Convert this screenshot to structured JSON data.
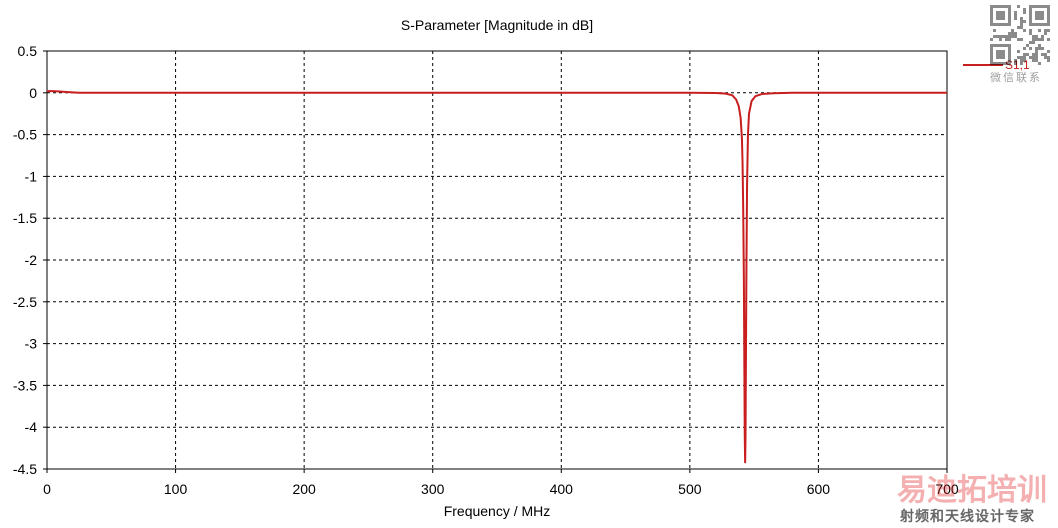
{
  "chart_data": {
    "type": "line",
    "title": "S-Parameter [Magnitude in dB]",
    "xlabel": "Frequency / MHz",
    "ylabel": "",
    "xlim": [
      0,
      700
    ],
    "ylim": [
      -4.5,
      0.5
    ],
    "xticks": [
      0,
      100,
      200,
      300,
      400,
      500,
      600,
      700
    ],
    "yticks": [
      0.5,
      0,
      -0.5,
      -1,
      -1.5,
      -2,
      -2.5,
      -3,
      -3.5,
      -4,
      -4.5
    ],
    "xtick_labels": [
      "0",
      "100",
      "200",
      "300",
      "400",
      "500",
      "600",
      "700"
    ],
    "ytick_labels": [
      "0.5",
      "0",
      "-0.5",
      "-1",
      "-1.5",
      "-2",
      "-2.5",
      "-3",
      "-3.5",
      "-4",
      "-4.5"
    ],
    "grid": true,
    "grid_style": "dashed",
    "legend_position": "right",
    "series": [
      {
        "name": "S1,1",
        "color": "#c81e1e",
        "x": [
          0,
          5,
          10,
          15,
          20,
          25,
          100,
          200,
          300,
          400,
          500,
          520,
          528,
          533,
          536,
          538,
          539.5,
          540.5,
          541,
          541.5,
          542,
          542.4,
          542.7,
          543,
          543.3,
          543.6,
          544,
          544.5,
          545.2,
          546,
          548,
          551,
          556,
          565,
          580,
          700
        ],
        "y": [
          0.02,
          0.02,
          0.015,
          0.01,
          0.005,
          0,
          0,
          0,
          0,
          0,
          0,
          -0.002,
          -0.01,
          -0.03,
          -0.08,
          -0.16,
          -0.3,
          -0.55,
          -0.85,
          -1.4,
          -2.2,
          -3.3,
          -4.1,
          -4.42,
          -4.1,
          -3.2,
          -2.1,
          -1.1,
          -0.5,
          -0.25,
          -0.1,
          -0.04,
          -0.015,
          -0.005,
          0,
          0
        ]
      }
    ]
  },
  "legend": {
    "entries": [
      {
        "label": "S1,1",
        "color": "#c81e1e"
      }
    ]
  },
  "watermark": {
    "logo_text": "易迪拓培训",
    "logo_subtitle": "射频和天线设计专家",
    "qr_caption": "微信联系",
    "icon": "qr-code-icon"
  }
}
